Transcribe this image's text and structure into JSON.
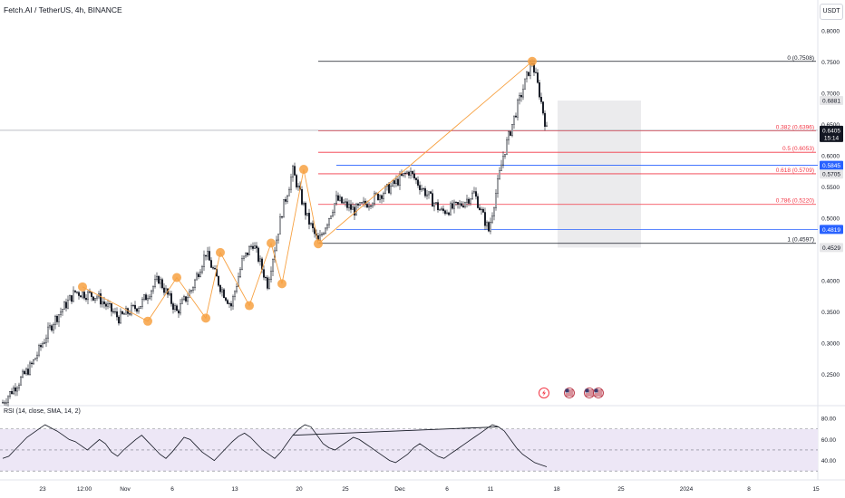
{
  "header": {
    "title": "Fetch.AI / TetherUS, 4h, BINANCE",
    "currency_button": "USDT"
  },
  "colors": {
    "up_candle": "#131722",
    "down_candle": "#131722",
    "fib_black": "#131722",
    "fib_red": "#f23645",
    "fib_blue": "#2962ff",
    "zigzag": "#f7a142",
    "rsi_band": "#ede7f6",
    "shade_box": "#e8e8ea"
  },
  "chart_data": [
    {
      "type": "candlestick",
      "symbol": "Fetch.AI / TetherUS",
      "timeframe": "4h",
      "exchange": "BINANCE",
      "ylim": [
        0.2,
        0.82
      ],
      "y_ticks": [
        "0.8000",
        "0.7500",
        "0.7000",
        "0.6500",
        "0.6000",
        "0.5500",
        "0.5000",
        "0.4500",
        "0.4000",
        "0.3500",
        "0.3000",
        "0.2500"
      ],
      "x_ticks": [
        "23",
        "12:00",
        "Nov",
        "6",
        "13",
        "20",
        "25",
        "Dec",
        "6",
        "11",
        "18",
        "25",
        "2024",
        "8",
        "15"
      ],
      "close_path": [
        {
          "day": 0,
          "close": 0.205
        },
        {
          "day": 8,
          "close": 0.265
        },
        {
          "day": 14,
          "close": 0.335
        },
        {
          "day": 20,
          "close": 0.382
        },
        {
          "day": 26,
          "close": 0.375
        },
        {
          "day": 32,
          "close": 0.34
        },
        {
          "day": 38,
          "close": 0.362
        },
        {
          "day": 43,
          "close": 0.403
        },
        {
          "day": 48,
          "close": 0.35
        },
        {
          "day": 52,
          "close": 0.385
        },
        {
          "day": 56,
          "close": 0.445
        },
        {
          "day": 60,
          "close": 0.39
        },
        {
          "day": 63,
          "close": 0.36
        },
        {
          "day": 66,
          "close": 0.43
        },
        {
          "day": 69,
          "close": 0.46
        },
        {
          "day": 73,
          "close": 0.395
        },
        {
          "day": 77,
          "close": 0.51
        },
        {
          "day": 80,
          "close": 0.575
        },
        {
          "day": 84,
          "close": 0.5
        },
        {
          "day": 87,
          "close": 0.461
        },
        {
          "day": 92,
          "close": 0.53
        },
        {
          "day": 97,
          "close": 0.512
        },
        {
          "day": 102,
          "close": 0.53
        },
        {
          "day": 107,
          "close": 0.55
        },
        {
          "day": 112,
          "close": 0.575
        },
        {
          "day": 116,
          "close": 0.545
        },
        {
          "day": 121,
          "close": 0.51
        },
        {
          "day": 126,
          "close": 0.52
        },
        {
          "day": 130,
          "close": 0.54
        },
        {
          "day": 134,
          "close": 0.48
        },
        {
          "day": 138,
          "close": 0.6
        },
        {
          "day": 142,
          "close": 0.68
        },
        {
          "day": 145,
          "close": 0.735
        },
        {
          "day": 146,
          "close": 0.75
        },
        {
          "day": 148,
          "close": 0.7
        },
        {
          "day": 150,
          "close": 0.6405
        }
      ],
      "fib_levels": [
        {
          "label": "0 (0.7508)",
          "value": 0.7508,
          "color": "#131722"
        },
        {
          "label": "0.382 (0.6396)",
          "value": 0.6396,
          "color": "#f23645"
        },
        {
          "label": "0.5 (0.6053)",
          "value": 0.6053,
          "color": "#f23645"
        },
        {
          "label": "0.618 (0.5709)",
          "value": 0.5709,
          "color": "#f23645"
        },
        {
          "label": "0.786 (0.5220)",
          "value": 0.522,
          "color": "#f23645"
        },
        {
          "label": "1 (0.4597)",
          "value": 0.4597,
          "color": "#131722"
        }
      ],
      "horizontal_lines": [
        {
          "value": 0.5845,
          "color": "#2962ff"
        },
        {
          "value": 0.4819,
          "color": "#2962ff"
        }
      ],
      "price_labels": [
        {
          "text": "0.6881",
          "value": 0.6881,
          "style": "gray"
        },
        {
          "text": "0.6405",
          "sub": "15:14",
          "value": 0.6405,
          "style": "dark"
        },
        {
          "text": "0.5845",
          "value": 0.5845,
          "style": "blue"
        },
        {
          "text": "0.5705",
          "value": 0.5705,
          "style": "gray"
        },
        {
          "text": "0.4819",
          "value": 0.4819,
          "style": "blue"
        },
        {
          "text": "0.4529",
          "value": 0.4529,
          "style": "gray"
        }
      ],
      "shaded_box": {
        "day_start": 153,
        "day_end": 176,
        "top": 0.6881,
        "bottom": 0.4529
      },
      "zigzag_points": [
        {
          "day": 22,
          "price": 0.39
        },
        {
          "day": 40,
          "price": 0.335
        },
        {
          "day": 48,
          "price": 0.405
        },
        {
          "day": 56,
          "price": 0.34
        },
        {
          "day": 60,
          "price": 0.445
        },
        {
          "day": 68,
          "price": 0.36
        },
        {
          "day": 74,
          "price": 0.46
        },
        {
          "day": 77,
          "price": 0.395
        },
        {
          "day": 83,
          "price": 0.578
        },
        {
          "day": 87,
          "price": 0.459
        },
        {
          "day": 146,
          "price": 0.7508
        }
      ],
      "event_markers": [
        "flash",
        "us-flag",
        "us-flag",
        "us-flag"
      ]
    },
    {
      "type": "line",
      "title": "RSI (14, close, SMA, 14, 2)",
      "ylim": [
        25,
        87
      ],
      "y_ticks": [
        "80.00",
        "60.00",
        "40.00"
      ],
      "band": [
        30,
        70
      ],
      "midline": 50,
      "values": [
        42,
        44,
        50,
        56,
        62,
        66,
        70,
        74,
        71,
        68,
        64,
        60,
        58,
        54,
        50,
        55,
        60,
        56,
        48,
        44,
        50,
        55,
        60,
        64,
        58,
        52,
        46,
        42,
        48,
        55,
        62,
        60,
        54,
        48,
        44,
        40,
        46,
        52,
        58,
        63,
        66,
        62,
        56,
        50,
        46,
        42,
        48,
        56,
        64,
        70,
        74,
        72,
        64,
        56,
        52,
        50,
        54,
        58,
        62,
        60,
        56,
        52,
        48,
        44,
        40,
        38,
        42,
        46,
        52,
        56,
        52,
        48,
        44,
        42,
        46,
        50,
        54,
        58,
        62,
        66,
        70,
        74,
        72,
        68,
        60,
        52,
        46,
        42,
        38,
        36,
        34
      ],
      "divergence_line": {
        "start_index": 48,
        "end_index": 82
      }
    }
  ]
}
